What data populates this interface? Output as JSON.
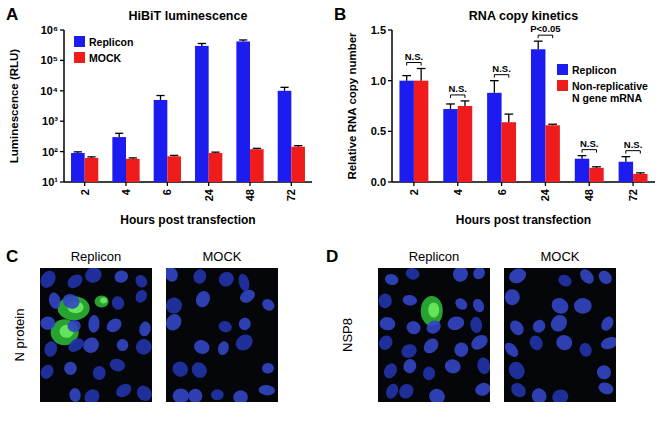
{
  "chart_data": [
    {
      "type": "bar",
      "panel": "A",
      "title": "HiBiT luminescence",
      "x_label": "Hours post transfection",
      "y_label": "Luminescence (RLU)",
      "categories": [
        "2",
        "4",
        "6",
        "24",
        "48",
        "72"
      ],
      "series": [
        {
          "name": "Replicon",
          "color": "#1c1cf0",
          "values": [
            90,
            300,
            5000,
            300000,
            420000,
            10000
          ],
          "errors": [
            8,
            100,
            2000,
            60000,
            50000,
            3000
          ]
        },
        {
          "name": "MOCK",
          "color": "#f01c1c",
          "values": [
            62,
            58,
            70,
            90,
            120,
            145
          ],
          "errors": [
            5,
            4,
            5,
            6,
            8,
            12
          ]
        }
      ],
      "log": "y",
      "ylim": [
        10,
        1000000
      ],
      "yticks": [
        {
          "value": 10,
          "label": "10¹"
        },
        {
          "value": 100,
          "label": "10²"
        },
        {
          "value": 1000,
          "label": "10³"
        },
        {
          "value": 10000,
          "label": "10⁴"
        },
        {
          "value": 100000,
          "label": "10⁵"
        },
        {
          "value": 1000000,
          "label": "10⁶"
        }
      ],
      "legend": "upper left"
    },
    {
      "type": "bar",
      "panel": "B",
      "title": "RNA copy kinetics",
      "x_label": "Hours post transfection",
      "y_label": "Relative RNA copy number",
      "categories": [
        "2",
        "4",
        "6",
        "24",
        "48",
        "72"
      ],
      "series": [
        {
          "name": "Replicon",
          "color": "#1c1cf0",
          "values": [
            1.0,
            0.72,
            0.88,
            1.31,
            0.23,
            0.2
          ],
          "errors": [
            0.05,
            0.05,
            0.12,
            0.08,
            0.03,
            0.05
          ]
        },
        {
          "name": "Non-replicative N gene mRNA",
          "color": "#f01c1c",
          "values": [
            1.0,
            0.75,
            0.59,
            0.56,
            0.14,
            0.08
          ],
          "errors": [
            0.12,
            0.05,
            0.08,
            0.01,
            0.01,
            0.01
          ]
        }
      ],
      "significance": [
        "N.S.",
        "N.S.",
        "N.S.",
        "P<0.05",
        "N.S.",
        "N.S."
      ],
      "ylim": [
        0,
        1.5
      ],
      "yticks": [
        {
          "value": 0,
          "label": "0.0"
        },
        0.5,
        {
          "value": 1,
          "label": "1.0"
        },
        1.5
      ],
      "legend": "upper right"
    }
  ],
  "images": [
    {
      "panel": "C",
      "stain": "N protein",
      "conditions": [
        "Replicon",
        "MOCK"
      ]
    },
    {
      "panel": "D",
      "stain": "NSP8",
      "conditions": [
        "Replicon",
        "MOCK"
      ]
    }
  ]
}
